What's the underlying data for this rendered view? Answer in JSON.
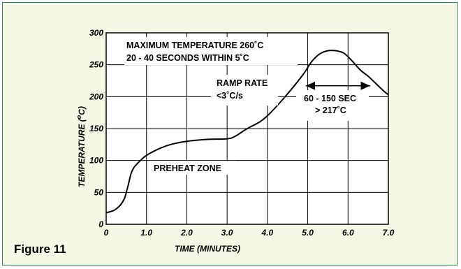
{
  "figure_label": "Figure 11",
  "chart_data": {
    "type": "line",
    "xlabel": "TIME (MINUTES)",
    "ylabel_main": "TEMPERATURE (",
    "ylabel_sup": "o",
    "ylabel_end": "C)",
    "xlim": [
      0,
      7
    ],
    "ylim": [
      0,
      300
    ],
    "grid": true,
    "x_ticks": [
      {
        "value": 0,
        "label": "0"
      },
      {
        "value": 1,
        "label": "1.0"
      },
      {
        "value": 2,
        "label": "2.0"
      },
      {
        "value": 3,
        "label": "3.0"
      },
      {
        "value": 4,
        "label": "4.0"
      },
      {
        "value": 5,
        "label": "5.0"
      },
      {
        "value": 6,
        "label": "6.0"
      },
      {
        "value": 7,
        "label": "7.0"
      }
    ],
    "y_ticks": [
      {
        "value": 0,
        "label": "0"
      },
      {
        "value": 50,
        "label": "50"
      },
      {
        "value": 100,
        "label": "100"
      },
      {
        "value": 150,
        "label": "150"
      },
      {
        "value": 200,
        "label": "200"
      },
      {
        "value": 250,
        "label": "250"
      },
      {
        "value": 300,
        "label": "300"
      }
    ],
    "series": [
      {
        "x": [
          0,
          0.2,
          0.35,
          0.45,
          0.5,
          0.55,
          0.62,
          0.7,
          0.85,
          1.0,
          1.3,
          1.6,
          2.0,
          2.5,
          3.0,
          3.2,
          3.5,
          3.8,
          4.0,
          4.3,
          4.6,
          4.9,
          5.1,
          5.3,
          5.5,
          5.7,
          5.9,
          6.1,
          6.3,
          6.5,
          6.7,
          6.9,
          7.0
        ],
        "y": [
          18,
          22,
          30,
          40,
          50,
          62,
          80,
          90,
          100,
          108,
          118,
          125,
          130,
          133,
          134,
          138,
          150,
          160,
          170,
          190,
          212,
          236,
          255,
          267,
          272,
          272,
          268,
          256,
          242,
          232,
          220,
          208,
          203
        ]
      }
    ],
    "annotations": {
      "max_temp_line1": "MAXIMUM TEMPERATURE 260˚C",
      "max_temp_line2": "20 - 40 SECONDS WITHIN 5˚C",
      "ramp_line1": "RAMP RATE",
      "ramp_line2": "<3˚C/s",
      "time_above_line1": "60 - 150 SEC",
      "time_above_line2": "> 217˚C",
      "preheat": "PREHEAT ZONE",
      "time_above_x_range": [
        4.95,
        6.55
      ],
      "time_above_y": 217
    }
  }
}
